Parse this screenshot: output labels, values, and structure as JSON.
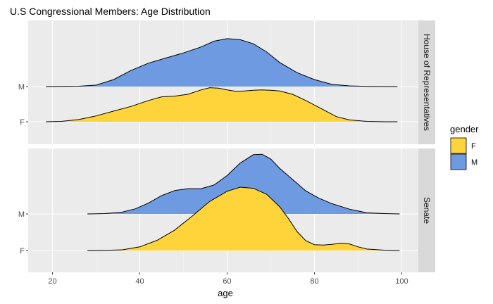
{
  "chart_data": {
    "type": "ridgeline-density",
    "title": "U.S Congressional Members: Age Distribution",
    "xlabel": "age",
    "ylabel": "",
    "xlim": [
      15,
      104
    ],
    "x_ticks": [
      20,
      40,
      60,
      80,
      100
    ],
    "y_categories": [
      "F",
      "M"
    ],
    "grid": true,
    "legend": {
      "title": "gender",
      "position": "right",
      "entries": [
        {
          "label": "F",
          "color": "#FFD33A"
        },
        {
          "label": "M",
          "color": "#6E9AE1"
        }
      ]
    },
    "panels": [
      {
        "name": "House of Representatives",
        "series": [
          {
            "name": "F",
            "color": "#FFD33A",
            "x": [
              18.5,
              22,
              26,
              30,
              34,
              38,
              42,
              45,
              48,
              51,
              54,
              56,
              58,
              60,
              62,
              64,
              66,
              68,
              70,
              72,
              75,
              78,
              82,
              85,
              88,
              92,
              96,
              99
            ],
            "density": [
              0,
              0.01,
              0.06,
              0.16,
              0.29,
              0.42,
              0.58,
              0.68,
              0.7,
              0.75,
              0.87,
              0.93,
              0.92,
              0.87,
              0.83,
              0.84,
              0.86,
              0.87,
              0.86,
              0.84,
              0.75,
              0.58,
              0.33,
              0.14,
              0.05,
              0.01,
              0,
              0
            ]
          },
          {
            "name": "M",
            "color": "#6E9AE1",
            "x": [
              18.5,
              22,
              26,
              30,
              34,
              38,
              42,
              46,
              50,
              54,
              57,
              60,
              63,
              66,
              69,
              72,
              76,
              80,
              84,
              88,
              92,
              96,
              99
            ],
            "density": [
              0,
              0.005,
              0.01,
              0.04,
              0.19,
              0.44,
              0.64,
              0.78,
              0.92,
              1.08,
              1.24,
              1.31,
              1.28,
              1.17,
              0.95,
              0.66,
              0.38,
              0.19,
              0.06,
              0.02,
              0.005,
              0,
              0
            ]
          }
        ]
      },
      {
        "name": "Senate",
        "series": [
          {
            "name": "F",
            "color": "#FFD33A",
            "x": [
              28,
              32,
              36,
              40,
              44,
              48,
              52,
              56,
              60,
              63,
              66,
              69,
              72,
              74,
              76,
              78,
              80,
              82,
              84,
              86,
              88,
              90,
              92,
              96,
              99.5
            ],
            "density": [
              0,
              0.005,
              0.02,
              0.1,
              0.28,
              0.56,
              0.94,
              1.34,
              1.62,
              1.73,
              1.7,
              1.54,
              1.2,
              0.88,
              0.52,
              0.27,
              0.16,
              0.15,
              0.17,
              0.2,
              0.18,
              0.1,
              0.04,
              0.01,
              0
            ]
          },
          {
            "name": "M",
            "color": "#6E9AE1",
            "x": [
              28,
              32,
              36,
              39,
              42,
              45,
              48,
              51,
              54,
              57,
              60,
              63,
              66,
              68,
              70,
              72,
              75,
              78,
              81,
              84,
              88,
              92,
              96,
              99.5
            ],
            "density": [
              0,
              0.01,
              0.05,
              0.14,
              0.3,
              0.5,
              0.64,
              0.69,
              0.69,
              0.79,
              1.05,
              1.39,
              1.62,
              1.63,
              1.5,
              1.25,
              0.94,
              0.63,
              0.43,
              0.28,
              0.13,
              0.03,
              0.01,
              0
            ]
          }
        ]
      }
    ]
  }
}
